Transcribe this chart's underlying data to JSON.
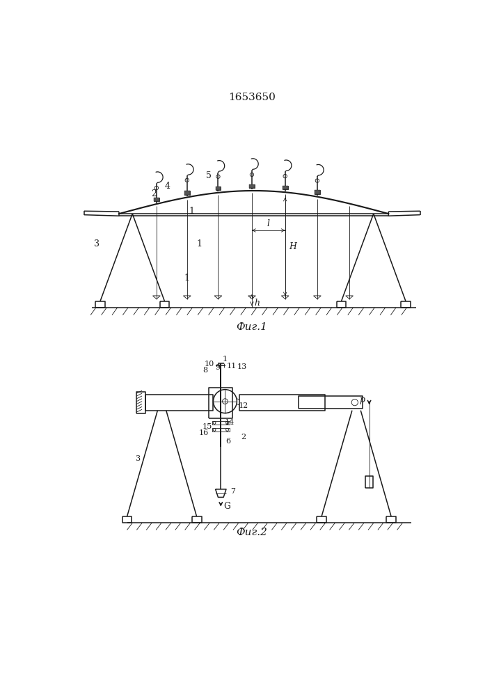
{
  "title": "1653650",
  "fig1_label": "Фиг.1",
  "fig2_label": "Фиг.2",
  "bg_color": "#ffffff",
  "line_color": "#1a1a1a",
  "lw": 1.1,
  "tlw": 0.6
}
